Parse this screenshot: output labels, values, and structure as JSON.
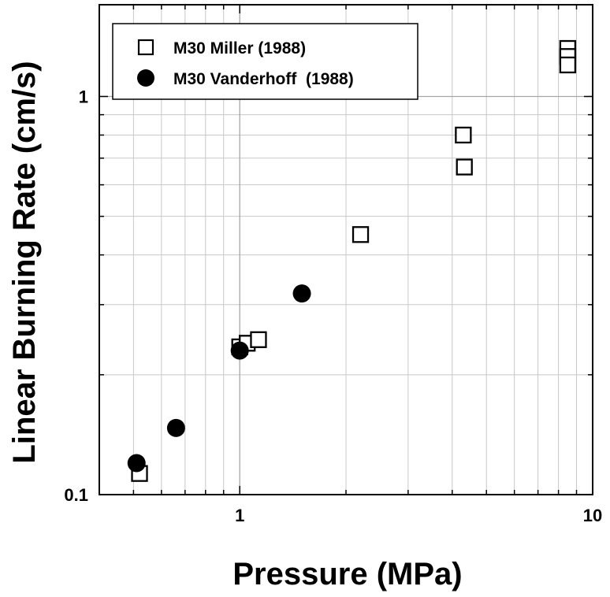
{
  "chart_data": {
    "type": "scatter",
    "title": "",
    "xlabel": "Pressure (MPa)",
    "ylabel": "Linear Burning Rate (cm/s)",
    "xscale": "log",
    "yscale": "log",
    "xlim": [
      0.4,
      10
    ],
    "ylim": [
      0.1,
      1.7
    ],
    "grid": true,
    "legend_position": "top-left",
    "x_ticks": [
      {
        "value": 1,
        "label": "1"
      },
      {
        "value": 10,
        "label": "10"
      }
    ],
    "y_ticks": [
      {
        "value": 0.1,
        "label": "0.1"
      },
      {
        "value": 1,
        "label": "1"
      }
    ],
    "series": [
      {
        "name": "M30 Miller (1988)",
        "marker": "open-square",
        "color": "#000000",
        "points": [
          {
            "x": 0.52,
            "y": 0.113
          },
          {
            "x": 1.0,
            "y": 0.235
          },
          {
            "x": 1.05,
            "y": 0.24
          },
          {
            "x": 1.13,
            "y": 0.245
          },
          {
            "x": 2.2,
            "y": 0.45
          },
          {
            "x": 4.3,
            "y": 0.8
          },
          {
            "x": 4.33,
            "y": 0.665
          },
          {
            "x": 8.5,
            "y": 1.32
          },
          {
            "x": 8.5,
            "y": 1.26
          },
          {
            "x": 8.5,
            "y": 1.2
          }
        ]
      },
      {
        "name": "M30 Vanderhoff  (1988)",
        "marker": "filled-circle",
        "color": "#000000",
        "points": [
          {
            "x": 0.51,
            "y": 0.12
          },
          {
            "x": 0.66,
            "y": 0.147
          },
          {
            "x": 1.0,
            "y": 0.23
          },
          {
            "x": 1.5,
            "y": 0.32
          }
        ]
      }
    ]
  }
}
